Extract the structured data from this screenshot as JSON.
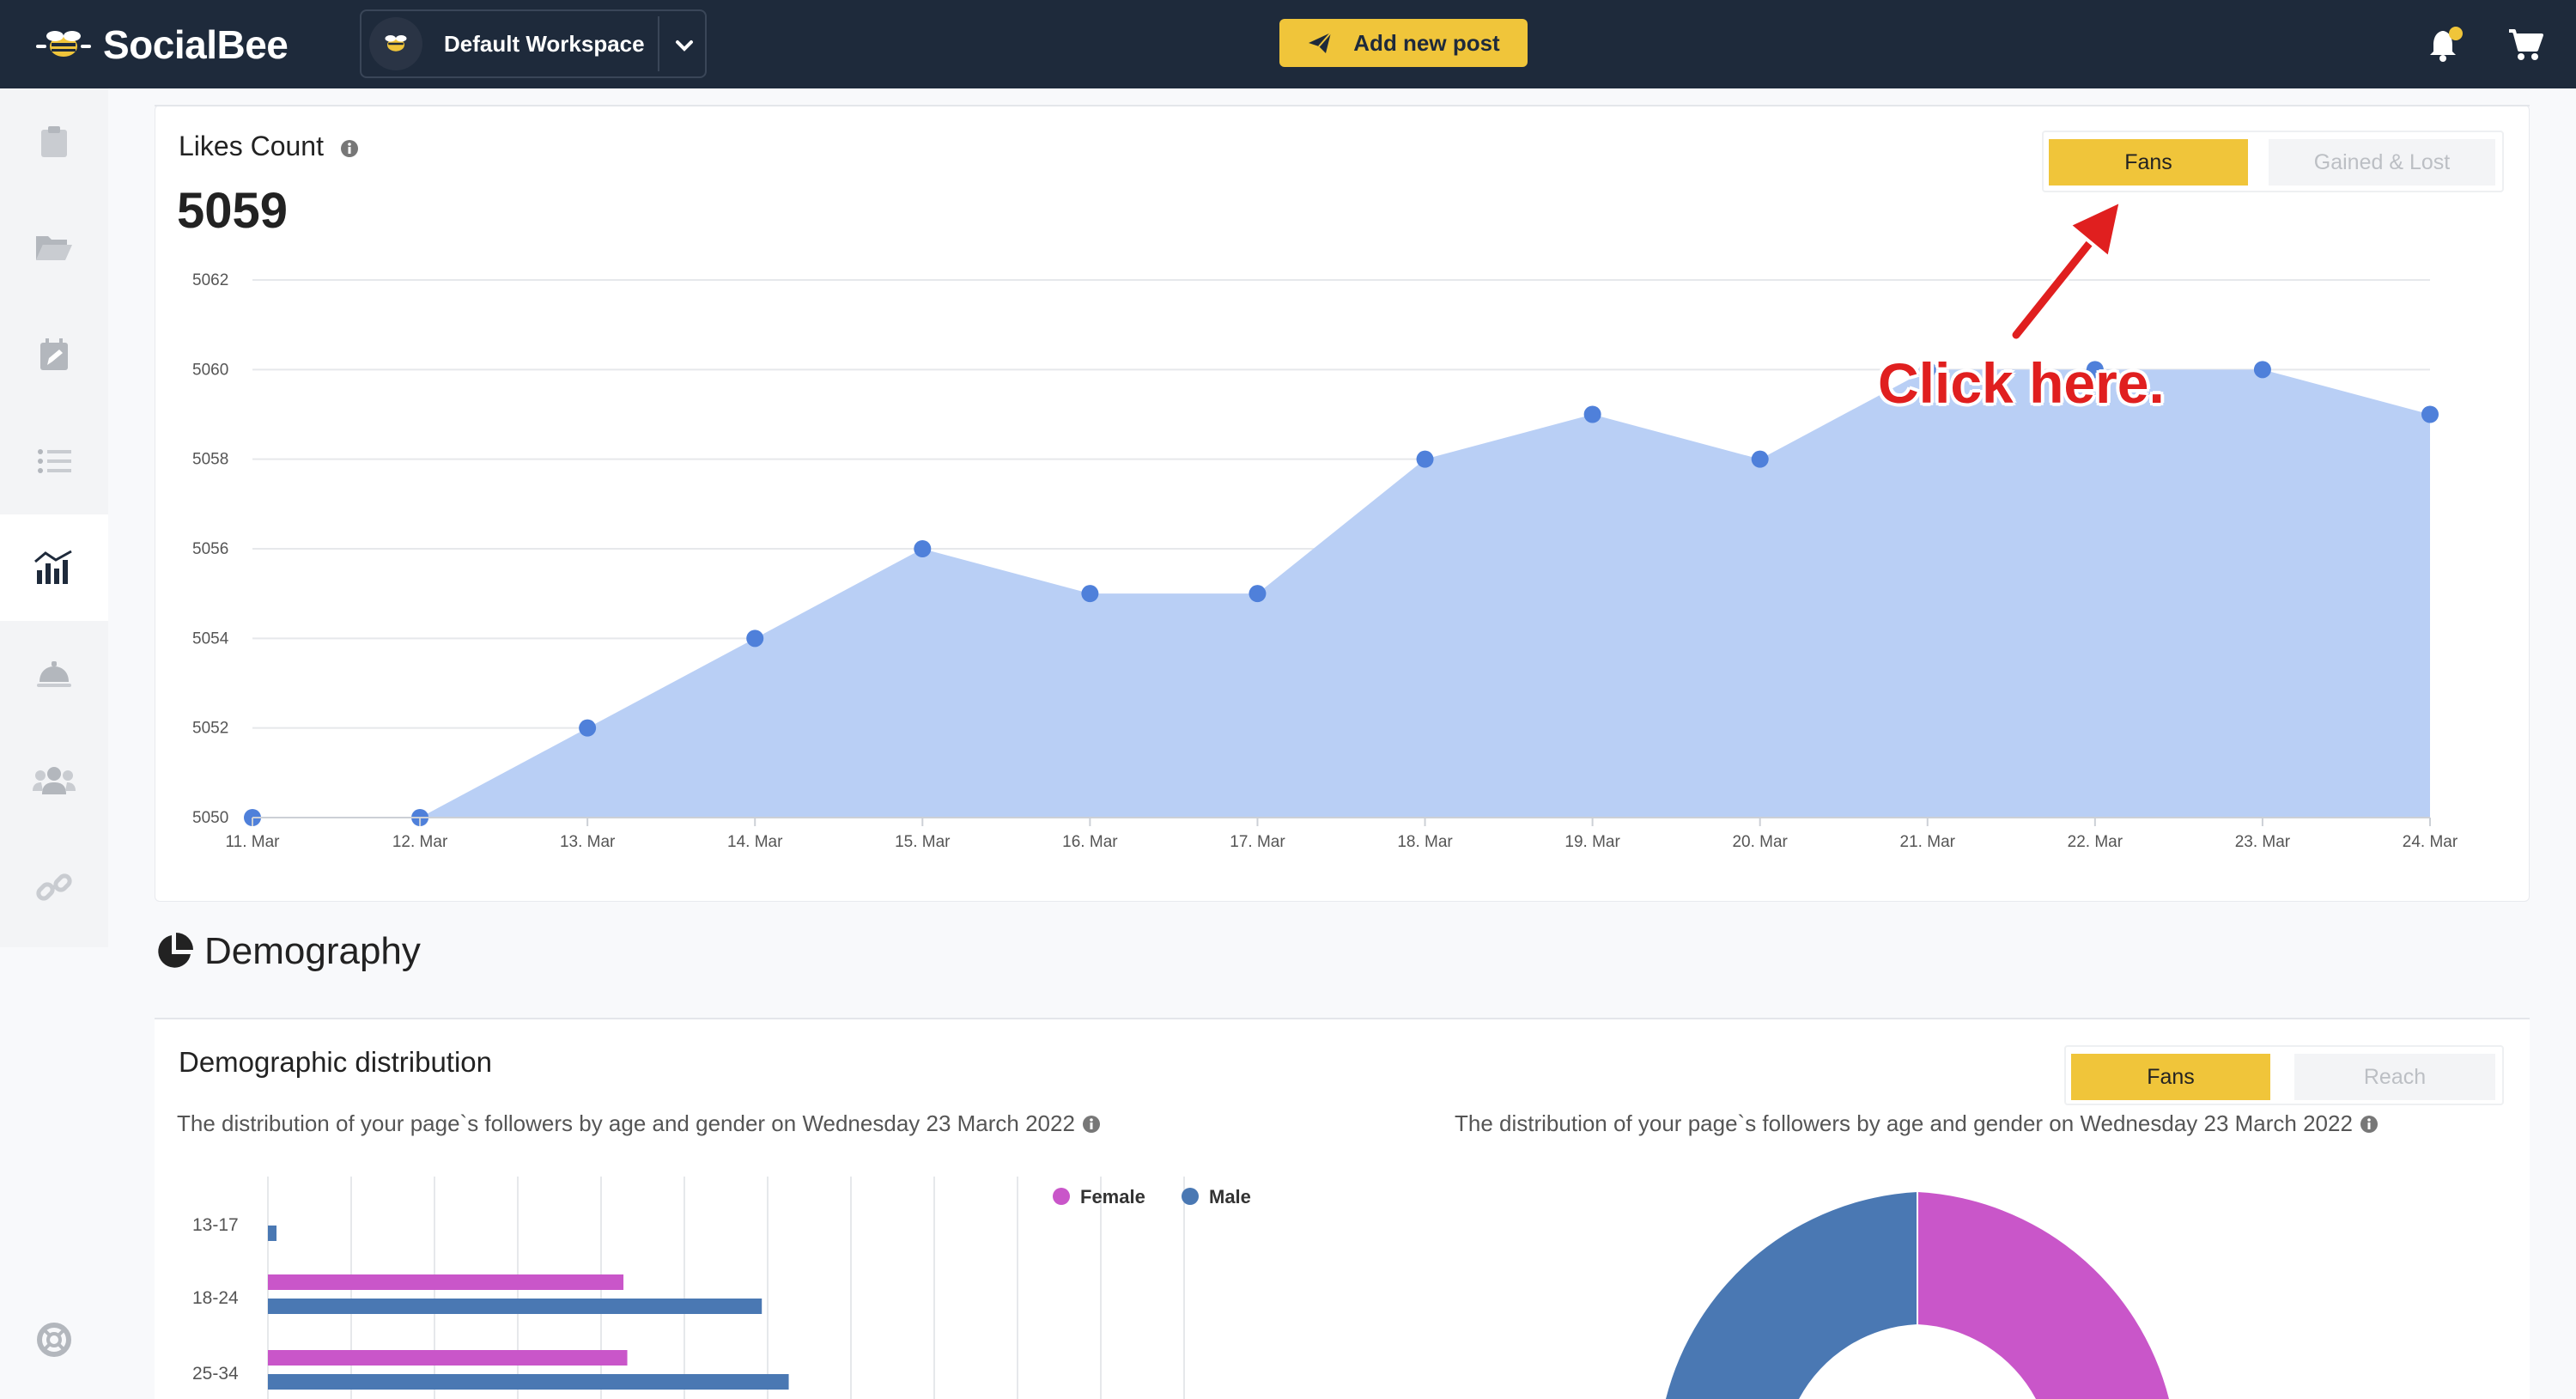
{
  "app": {
    "name": "SocialBee"
  },
  "workspace": {
    "name": "Default Workspace"
  },
  "header": {
    "add_post_label": "Add new post"
  },
  "colors": {
    "accent": "#f0c53a",
    "navbar": "#1e2a3b",
    "area": "#b9cff5",
    "point": "#4f80da",
    "female": "#c956c9",
    "male": "#4a78b3",
    "annotation": "#e01f1f"
  },
  "sidebar": {
    "items": [
      {
        "icon": "clipboard-icon"
      },
      {
        "icon": "folder-open-icon"
      },
      {
        "icon": "calendar-edit-icon"
      },
      {
        "icon": "list-icon"
      },
      {
        "icon": "analytics-icon",
        "active": true
      },
      {
        "icon": "concierge-bell-icon"
      },
      {
        "icon": "users-icon"
      },
      {
        "icon": "link-icon"
      }
    ],
    "help_icon": "life-ring-icon"
  },
  "likes": {
    "title": "Likes Count",
    "value": "5059",
    "toggle": {
      "active": "Fans",
      "inactive": "Gained & Lost"
    }
  },
  "annotation": {
    "text": "Click here."
  },
  "chart_data": [
    {
      "type": "area",
      "x": [
        "11. Mar",
        "12. Mar",
        "13. Mar",
        "14. Mar",
        "15. Mar",
        "16. Mar",
        "17. Mar",
        "18. Mar",
        "19. Mar",
        "20. Mar",
        "21. Mar",
        "22. Mar",
        "23. Mar",
        "24. Mar"
      ],
      "values": [
        5050,
        5050,
        5052,
        5054,
        5056,
        5055,
        5055,
        5058,
        5059,
        5058,
        5060,
        5060,
        5060,
        5059
      ],
      "yticks": [
        "5062",
        "5060",
        "5058",
        "5056",
        "5054",
        "5052",
        "5050"
      ],
      "ylim": [
        5050,
        5062
      ],
      "grid": true
    },
    {
      "type": "bar",
      "orientation": "horizontal",
      "categories": [
        "13-17",
        "18-24",
        "25-34"
      ],
      "series": [
        {
          "name": "Female",
          "values": [
            0,
            37,
            37.4
          ]
        },
        {
          "name": "Male",
          "values": [
            0.5,
            51.4,
            54.2
          ]
        }
      ],
      "legend": "top-right",
      "grid": true
    }
  ],
  "demography": {
    "title": "Demography",
    "heading": "Demographic distribution",
    "toggle": {
      "active": "Fans",
      "inactive": "Reach"
    },
    "subtitle_left": "The distribution of your page`s followers by age and gender on Wednesday 23 March 2022",
    "subtitle_right": "The distribution of your page`s followers by age and gender on Wednesday 23 March 2022"
  }
}
